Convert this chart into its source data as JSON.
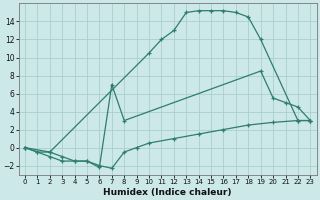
{
  "xlabel": "Humidex (Indice chaleur)",
  "line1": {
    "x": [
      0,
      1,
      2,
      10,
      11,
      12,
      13,
      14,
      15,
      16,
      17,
      18,
      19,
      22,
      23
    ],
    "y": [
      0,
      -0.5,
      -0.5,
      10.5,
      12,
      13,
      15,
      15.2,
      15.2,
      15.2,
      15,
      14.5,
      12,
      3,
      3
    ]
  },
  "line2": {
    "x": [
      0,
      1,
      2,
      3,
      4,
      5,
      6,
      7,
      8,
      19,
      20,
      21,
      22,
      23
    ],
    "y": [
      0,
      -0.5,
      -1,
      -1.5,
      -1.5,
      -1.5,
      -2.2,
      7,
      3,
      8.5,
      5.5,
      5,
      4.5,
      3
    ]
  },
  "line3": {
    "x": [
      0,
      2,
      3,
      4,
      5,
      6,
      7,
      8,
      9,
      10,
      12,
      14,
      16,
      18,
      20,
      22,
      23
    ],
    "y": [
      0,
      -0.5,
      -1,
      -1.5,
      -1.5,
      -2,
      -2.3,
      -0.5,
      0,
      0.5,
      1,
      1.5,
      2,
      2.5,
      2.8,
      3,
      3
    ]
  },
  "bg_color": "#cce8e8",
  "grid_color": "#aacece",
  "line_color": "#2e7d6e",
  "xlim": [
    -0.5,
    23.5
  ],
  "ylim": [
    -3,
    16
  ],
  "yticks": [
    -2,
    0,
    2,
    4,
    6,
    8,
    10,
    12,
    14
  ],
  "xtick_labels": [
    "0",
    "1",
    "2",
    "3",
    "4",
    "5",
    "6",
    "7",
    "8",
    "9",
    "10",
    "11",
    "12",
    "13",
    "14",
    "15",
    "16",
    "17",
    "18",
    "19",
    "20",
    "21",
    "22",
    "23"
  ],
  "linewidth": 0.9,
  "markersize": 3.5
}
